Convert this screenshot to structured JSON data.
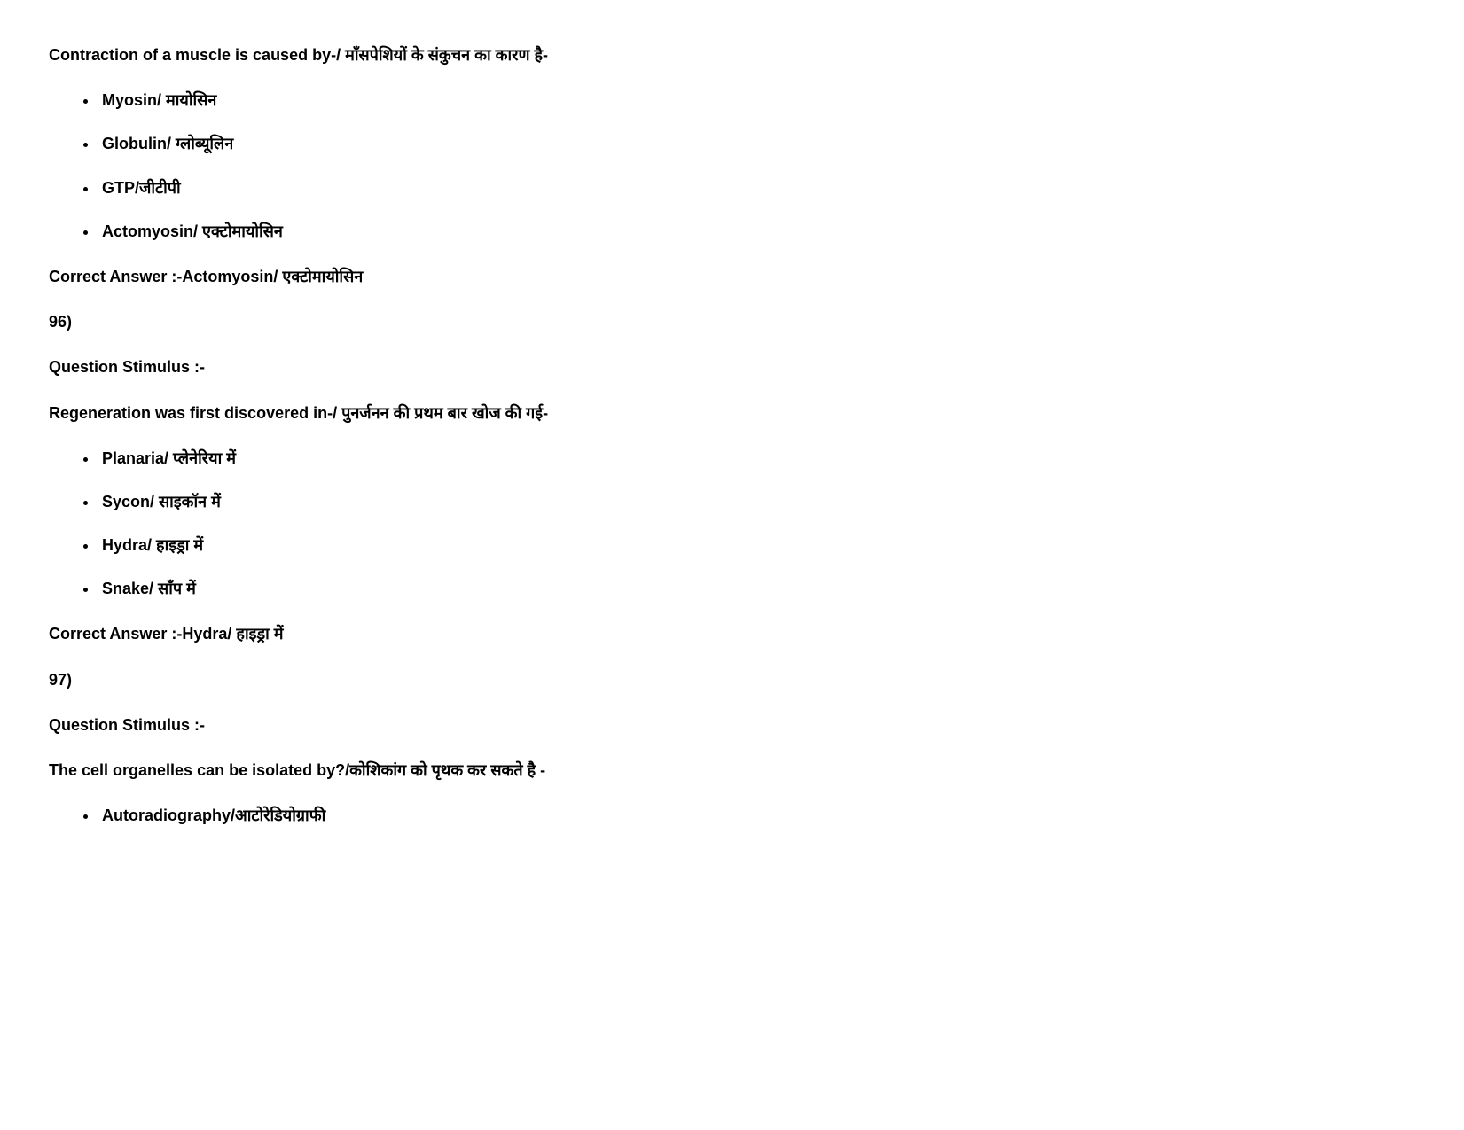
{
  "questions": [
    {
      "text": "Contraction of a muscle is caused by-/ माँसपेशियों के संकुचन का कारण है-",
      "options": [
        "Myosin/ मायोसिन",
        "Globulin/ ग्लोब्यूलिन",
        "GTP/जीटीपी",
        "Actomyosin/ एक्टोमायोसिन"
      ],
      "correct_answer_label": "Correct Answer :-",
      "correct_answer_value": "Actomyosin/ एक्टोमायोसिन"
    },
    {
      "number": "96)",
      "stimulus_label": "Question Stimulus :-",
      "text": "Regeneration was first discovered in-/ पुनर्जनन की प्रथम बार खोज की गई-",
      "options": [
        "Planaria/ प्लेनेरिया में",
        "Sycon/ साइकॉन में",
        "Hydra/ हाइड्रा में",
        "Snake/ साँप में"
      ],
      "correct_answer_label": "Correct Answer :-",
      "correct_answer_value": "Hydra/ हाइड्रा में"
    },
    {
      "number": "97)",
      "stimulus_label": "Question Stimulus :-",
      "text": "The cell organelles can be isolated by?/कोशिकांग को पृथक कर सकते है -",
      "options": [
        "Autoradiography/आटोरेडियोग्राफी"
      ]
    }
  ],
  "typography": {
    "font_family": "Verdana, Arial, sans-serif",
    "font_size_pt": 14,
    "font_weight": "bold",
    "text_color": "#000000",
    "background_color": "#ffffff"
  }
}
